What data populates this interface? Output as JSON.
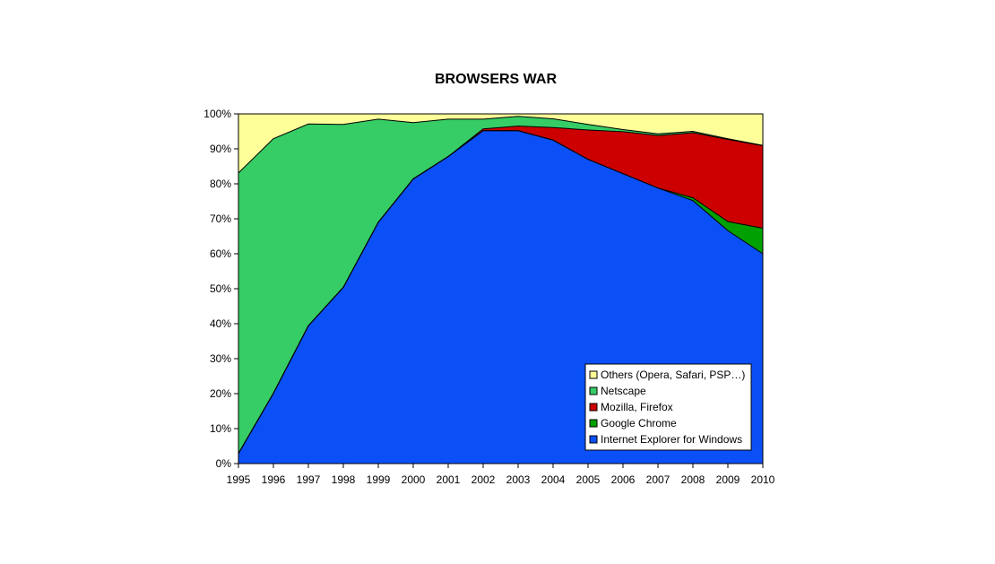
{
  "chart_data": {
    "type": "area",
    "stacked": true,
    "normalized_percent": true,
    "title": "BROWSERS WAR",
    "xlabel": "",
    "ylabel": "",
    "x": [
      "1995",
      "1996",
      "1997",
      "1998",
      "1999",
      "2000",
      "2001",
      "2002",
      "2003",
      "2004",
      "2005",
      "2006",
      "2007",
      "2008",
      "2009",
      "2010"
    ],
    "y_ticks": [
      "0%",
      "10%",
      "20%",
      "30%",
      "40%",
      "50%",
      "60%",
      "70%",
      "80%",
      "90%",
      "100%"
    ],
    "ylim": [
      0,
      100
    ],
    "grid": false,
    "legend_position": "bottom-right",
    "series": [
      {
        "name": "Internet Explorer for Windows",
        "color": "#0b4ff6",
        "values": [
          2.9,
          20.1,
          39.4,
          50.4,
          69.0,
          81.4,
          87.8,
          95.2,
          95.2,
          92.5,
          87.0,
          82.9,
          78.8,
          75.2,
          66.6,
          60.0
        ]
      },
      {
        "name": "Google Chrome",
        "color": "#00a000",
        "values": [
          0,
          0,
          0,
          0,
          0,
          0,
          0,
          0,
          0,
          0,
          0,
          0,
          0,
          0.8,
          2.6,
          7.3
        ]
      },
      {
        "name": "Mozilla, Firefox",
        "color": "#cc0000",
        "values": [
          0,
          0,
          0,
          0,
          0,
          0,
          0,
          0.5,
          1.3,
          3.6,
          8.4,
          12.0,
          15.0,
          18.6,
          23.5,
          23.6
        ]
      },
      {
        "name": "Netscape",
        "color": "#36cc66",
        "values": [
          80.2,
          72.8,
          57.7,
          46.6,
          29.5,
          16.1,
          10.7,
          2.8,
          2.8,
          2.5,
          1.6,
          0.6,
          0.5,
          0.4,
          0.2,
          0.1
        ]
      },
      {
        "name": "Others (Opera, Safari, PSP…)",
        "color": "#ffff99",
        "values": [
          16.9,
          7.1,
          2.9,
          3.0,
          1.5,
          2.5,
          1.5,
          1.5,
          0.7,
          1.4,
          3.0,
          4.5,
          5.7,
          5.0,
          7.1,
          9.0
        ]
      }
    ],
    "legend_order": [
      "Others (Opera, Safari, PSP…)",
      "Netscape",
      "Mozilla, Firefox",
      "Google Chrome",
      "Internet Explorer for Windows"
    ]
  }
}
